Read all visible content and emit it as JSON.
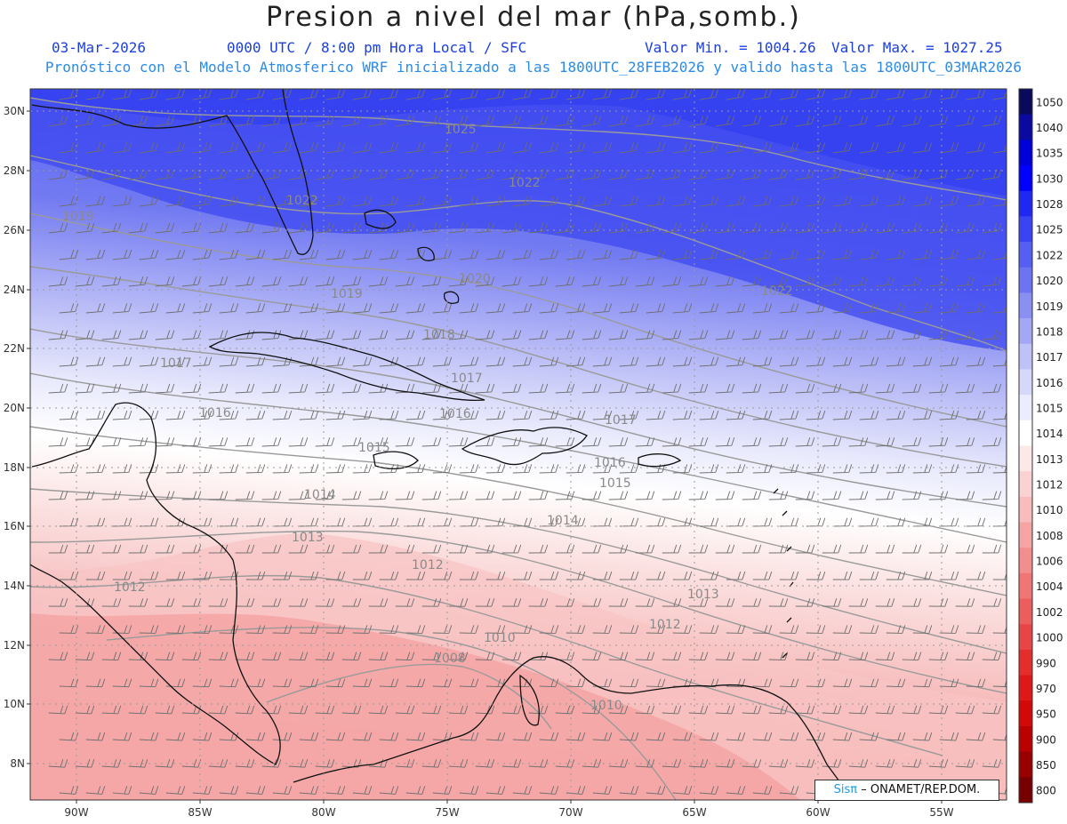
{
  "header": {
    "title": "Presion a nivel del mar (hPa,somb.)",
    "date": "03-Mar-2026",
    "time_info": "0000 UTC / 8:00 pm Hora Local / SFC",
    "min_value": "Valor Min. = 1004.26",
    "max_value": "Valor Max. = 1027.25",
    "description": "Pronóstico con el Modelo Atmosferico WRF inicializado a las 1800UTC_28FEB2026 y valido hasta las  1800UTC_03MAR2026"
  },
  "map": {
    "lat_labels": [
      "30N",
      "28N",
      "26N",
      "24N",
      "22N",
      "20N",
      "18N",
      "16N",
      "14N",
      "12N",
      "10N",
      "8N"
    ],
    "lon_labels": [
      "90W",
      "85W",
      "80W",
      "75W",
      "70W",
      "65W",
      "60W",
      "55W"
    ],
    "contour_labels": [
      "1025",
      "1022",
      "1022",
      "1022",
      "1019",
      "1020",
      "1019",
      "1018",
      "1017",
      "1017",
      "1016",
      "1016",
      "1017",
      "1015",
      "1016",
      "1015",
      "1014",
      "1014",
      "1013",
      "1013",
      "1012",
      "1012",
      "1012",
      "1010",
      "1008",
      "1010"
    ],
    "colors": {
      "high_dark": "#2a2ae6",
      "mid_blue": "#8f93f2",
      "neutral": "#ffffff",
      "low_pink": "#f7a1a1"
    }
  },
  "colorbar": {
    "levels": [
      "1050",
      "1040",
      "1035",
      "1030",
      "1028",
      "1025",
      "1022",
      "1020",
      "1019",
      "1018",
      "1017",
      "1016",
      "1015",
      "1014",
      "1013",
      "1012",
      "1010",
      "1008",
      "1006",
      "1004",
      "1002",
      "1000",
      "990",
      "970",
      "950",
      "900",
      "850",
      "800"
    ],
    "colors": [
      "#0a0a5a",
      "#0a0aa0",
      "#0000d8",
      "#0000ff",
      "#1e28f2",
      "#3a44f2",
      "#5560f2",
      "#6c74f2",
      "#8a90f2",
      "#a4a8f4",
      "#bfc2f7",
      "#d6d8fa",
      "#ebecfc",
      "#ffffff",
      "#fde8e8",
      "#fbd2d2",
      "#f8bcbc",
      "#f6a4a4",
      "#f38e8e",
      "#f07676",
      "#ec5e5e",
      "#e84646",
      "#e42e2e",
      "#de1818",
      "#d40808",
      "#bb0000",
      "#990000",
      "#770000"
    ]
  },
  "credit": {
    "logo": "Sisπ",
    "text": "– ONAMET/REP.DOM."
  }
}
